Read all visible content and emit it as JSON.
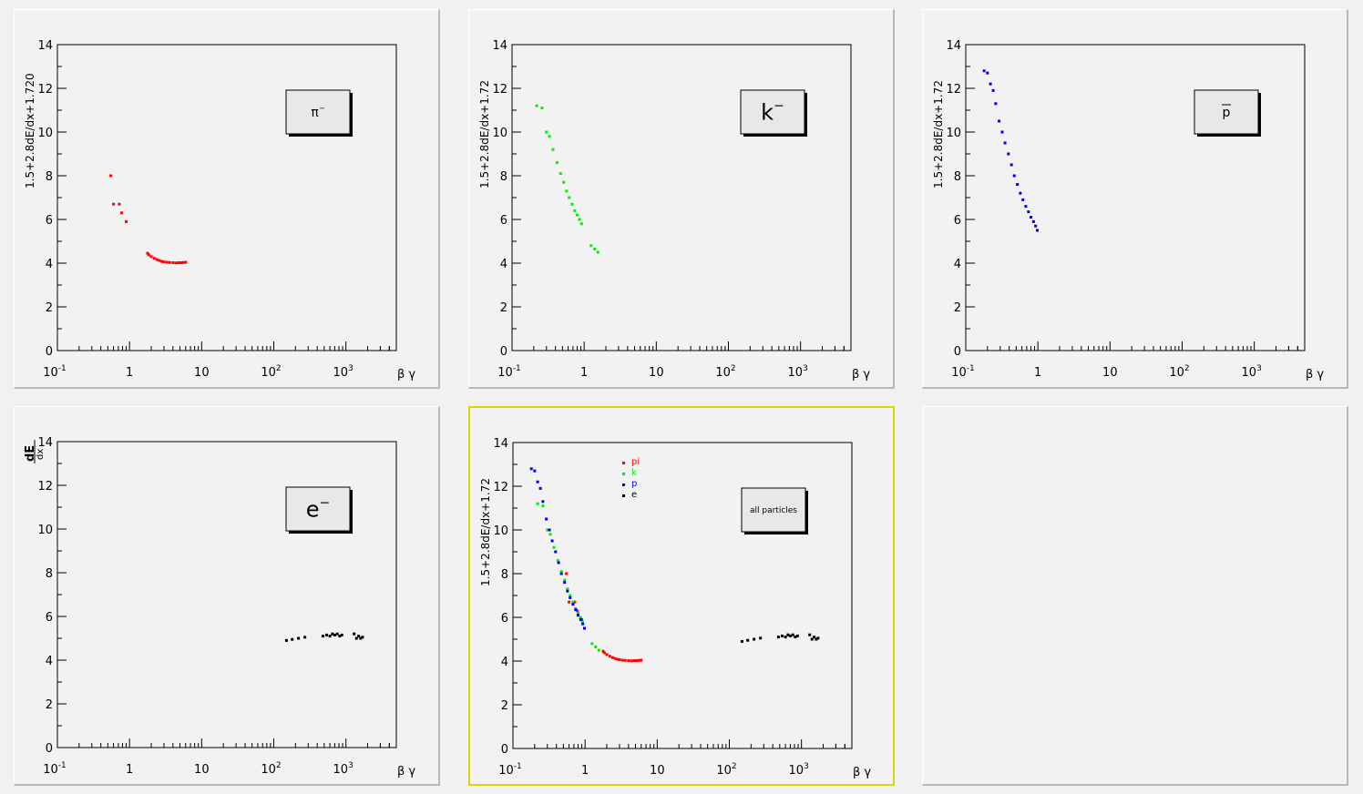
{
  "pads": [
    {
      "id": "pi",
      "active": false,
      "ylabel": "1.5+2.8dE/dx+1.720",
      "label": "π",
      "label_sup": "−",
      "label_font": 14,
      "color": "#ff0000",
      "series": [
        "pi"
      ]
    },
    {
      "id": "k",
      "active": false,
      "ylabel": "1.5+2.8dE/dx+1.72",
      "label": "k",
      "label_sup": "−",
      "label_font": 24,
      "color": "#00ee00",
      "series": [
        "k"
      ]
    },
    {
      "id": "p",
      "active": false,
      "ylabel": "1.5+2.8dE/dx+1.72",
      "label": "p",
      "label_overline": true,
      "label_font": 14,
      "color": "#0000ee",
      "series": [
        "p"
      ]
    },
    {
      "id": "e",
      "active": false,
      "ylabel_top": "dE",
      "ylabel_bottom": "dx",
      "label": "e",
      "label_sup": "−",
      "label_font": 24,
      "color": "#000000",
      "series": [
        "e"
      ]
    },
    {
      "id": "all",
      "active": true,
      "ylabel": "1.5+2.8dE/dx+1.72",
      "label": "all particles",
      "label_font": 9,
      "series": [
        "pi",
        "k",
        "p",
        "e"
      ],
      "legend": [
        {
          "name": "pi",
          "color": "#ff0000"
        },
        {
          "name": "k",
          "color": "#00ee00"
        },
        {
          "name": "p",
          "color": "#0000ee"
        },
        {
          "name": "e",
          "color": "#000000"
        }
      ]
    },
    {
      "id": "empty",
      "active": false,
      "empty": true
    }
  ],
  "axis": {
    "x_ticks": [
      {
        "base": "10",
        "exp": "-1"
      },
      {
        "base": "1",
        "exp": ""
      },
      {
        "base": "10",
        "exp": ""
      },
      {
        "base": "10",
        "exp": "2"
      },
      {
        "base": "10",
        "exp": "3"
      }
    ],
    "x_title": "β γ",
    "y_ticks": [
      "0",
      "2",
      "4",
      "6",
      "8",
      "10",
      "12",
      "14"
    ]
  },
  "chart_data": {
    "type": "scatter",
    "x_scale": "log",
    "xlim": [
      0.1,
      5000
    ],
    "ylim": [
      0,
      14
    ],
    "xlabel": "β γ",
    "grid": false,
    "series": [
      {
        "name": "pi",
        "color": "#ff0000",
        "points": [
          [
            0.55,
            8.0
          ],
          [
            0.6,
            6.7
          ],
          [
            0.72,
            6.7
          ],
          [
            0.78,
            6.3
          ],
          [
            0.9,
            5.9
          ],
          [
            1.78,
            4.45
          ],
          [
            1.85,
            4.38
          ],
          [
            2.0,
            4.3
          ],
          [
            2.2,
            4.22
          ],
          [
            2.4,
            4.16
          ],
          [
            2.6,
            4.12
          ],
          [
            2.8,
            4.08
          ],
          [
            3.0,
            4.06
          ],
          [
            3.3,
            4.04
          ],
          [
            3.6,
            4.03
          ],
          [
            4.0,
            4.02
          ],
          [
            4.4,
            4.01
          ],
          [
            4.8,
            4.02
          ],
          [
            5.2,
            4.02
          ],
          [
            5.6,
            4.03
          ],
          [
            6.0,
            4.04
          ]
        ]
      },
      {
        "name": "k",
        "color": "#00ee00",
        "points": [
          [
            0.22,
            11.2
          ],
          [
            0.26,
            11.1
          ],
          [
            0.3,
            10.0
          ],
          [
            0.33,
            9.8
          ],
          [
            0.37,
            9.2
          ],
          [
            0.42,
            8.6
          ],
          [
            0.47,
            8.1
          ],
          [
            0.52,
            7.7
          ],
          [
            0.57,
            7.3
          ],
          [
            0.62,
            7.0
          ],
          [
            0.68,
            6.7
          ],
          [
            0.74,
            6.4
          ],
          [
            0.8,
            6.2
          ],
          [
            0.86,
            6.0
          ],
          [
            0.92,
            5.8
          ],
          [
            1.25,
            4.8
          ],
          [
            1.4,
            4.65
          ],
          [
            1.55,
            4.5
          ]
        ]
      },
      {
        "name": "p",
        "color": "#0000ee",
        "points": [
          [
            0.18,
            12.8
          ],
          [
            0.2,
            12.7
          ],
          [
            0.22,
            12.2
          ],
          [
            0.24,
            11.9
          ],
          [
            0.26,
            11.3
          ],
          [
            0.29,
            10.5
          ],
          [
            0.32,
            10.0
          ],
          [
            0.35,
            9.5
          ],
          [
            0.39,
            9.0
          ],
          [
            0.43,
            8.5
          ],
          [
            0.47,
            8.0
          ],
          [
            0.52,
            7.6
          ],
          [
            0.57,
            7.2
          ],
          [
            0.62,
            6.9
          ],
          [
            0.68,
            6.6
          ],
          [
            0.74,
            6.35
          ],
          [
            0.8,
            6.1
          ],
          [
            0.87,
            5.9
          ],
          [
            0.93,
            5.7
          ],
          [
            0.98,
            5.5
          ]
        ]
      },
      {
        "name": "e",
        "color": "#000000",
        "points": [
          [
            150,
            4.9
          ],
          [
            180,
            4.95
          ],
          [
            220,
            5.0
          ],
          [
            270,
            5.05
          ],
          [
            480,
            5.1
          ],
          [
            540,
            5.15
          ],
          [
            600,
            5.1
          ],
          [
            650,
            5.2
          ],
          [
            700,
            5.15
          ],
          [
            760,
            5.2
          ],
          [
            820,
            5.1
          ],
          [
            880,
            5.15
          ],
          [
            1300,
            5.2
          ],
          [
            1400,
            5.0
          ],
          [
            1500,
            5.1
          ],
          [
            1600,
            5.0
          ],
          [
            1700,
            5.05
          ]
        ]
      }
    ]
  }
}
